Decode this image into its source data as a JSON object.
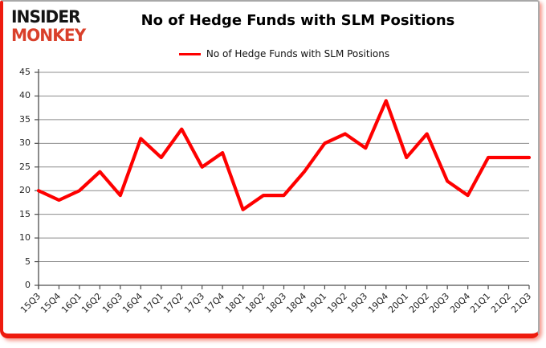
{
  "logo": {
    "line1": "INSIDER",
    "line2": "MONKEY"
  },
  "header": {
    "title": "No of Hedge Funds with SLM Positions"
  },
  "legend": {
    "label": "No of Hedge Funds with SLM Positions"
  },
  "colors": {
    "series": "#fe0000",
    "logo_accent": "#d9402b",
    "grid": "#8c8c8c",
    "axis": "#4d4d4d",
    "frame_red": "#ee1b0e",
    "frame_gray": "#a8a8a8",
    "tick_text": "#262626"
  },
  "chart_data": {
    "type": "line",
    "title": "No of Hedge Funds with SLM Positions",
    "categories": [
      "15Q3",
      "15Q4",
      "16Q1",
      "16Q2",
      "16Q3",
      "16Q4",
      "17Q1",
      "17Q2",
      "17Q3",
      "17Q4",
      "18Q1",
      "18Q2",
      "18Q3",
      "18Q4",
      "19Q1",
      "19Q2",
      "19Q3",
      "19Q4",
      "20Q1",
      "20Q2",
      "20Q3",
      "20Q4",
      "21Q1",
      "21Q2",
      "21Q3"
    ],
    "series": [
      {
        "name": "No of Hedge Funds with SLM Positions",
        "color": "#fe0000",
        "values": [
          20,
          18,
          20,
          24,
          19,
          31,
          27,
          33,
          25,
          28,
          16,
          19,
          19,
          24,
          30,
          32,
          29,
          39,
          27,
          32,
          22,
          19,
          27,
          27,
          27
        ]
      }
    ],
    "xlabel": "",
    "ylabel": "",
    "ylim": [
      0,
      45
    ],
    "yticks": [
      0,
      5,
      10,
      15,
      20,
      25,
      30,
      35,
      40,
      45
    ],
    "grid": true,
    "legend_position": "top"
  }
}
